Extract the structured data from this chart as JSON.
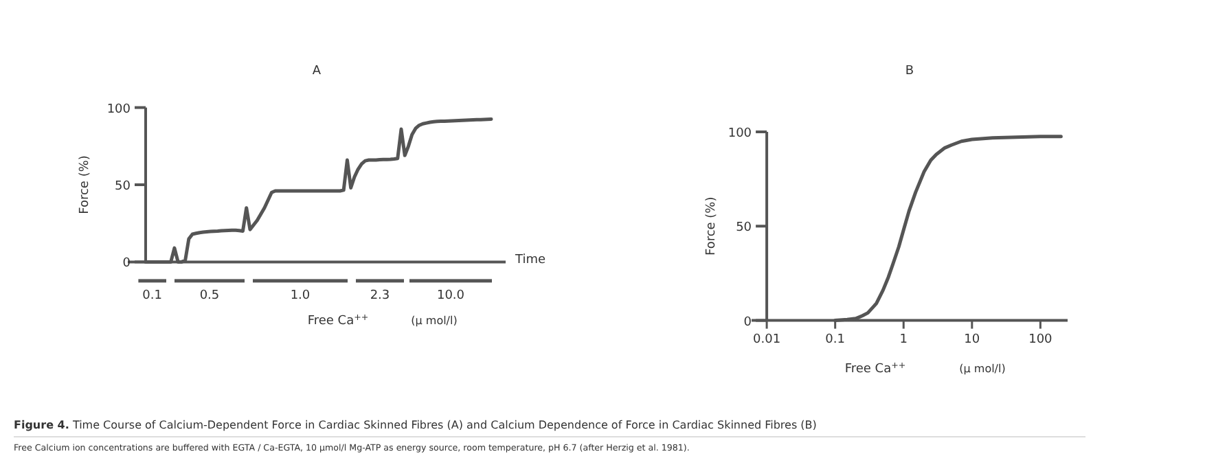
{
  "chart_data": [
    {
      "type": "line",
      "title": "A",
      "xlabel": "Time",
      "ylabel": "Force (%)",
      "categories": [
        null,
        null,
        null,
        null,
        null,
        null,
        null,
        null,
        null,
        null,
        null,
        null,
        null,
        null,
        null,
        null,
        null,
        null,
        null,
        null,
        null,
        null,
        null,
        null,
        null,
        null,
        null,
        null,
        null,
        null,
        null,
        null,
        null,
        null,
        null,
        null,
        null,
        null,
        null,
        null,
        null,
        null,
        null,
        null,
        null,
        null,
        null,
        null,
        null,
        null,
        null,
        null,
        null,
        null,
        null,
        null,
        null,
        null,
        null,
        null,
        null,
        null,
        null,
        null,
        null,
        null,
        null,
        null,
        null,
        null,
        null,
        null,
        null,
        null,
        null,
        null,
        null,
        null,
        null,
        null,
        null,
        null,
        null,
        null,
        null,
        null,
        null,
        null,
        null,
        null,
        null,
        null,
        null,
        null,
        null,
        null,
        null
      ],
      "ylim": [
        0,
        100
      ],
      "yticks": [
        0,
        50,
        100
      ],
      "tick_labels": "y",
      "marker": "none",
      "line_style": "solid",
      "series": [
        {
          "color": "#555555",
          "values": [
            0,
            0,
            0,
            0,
            0,
            0,
            0,
            0,
            9,
            0,
            0,
            1,
            15,
            18,
            18.5,
            19,
            19.3,
            19.5,
            19.7,
            19.9,
            20,
            20.2,
            20.3,
            20.4,
            20.5,
            20.5,
            20.3,
            20,
            35,
            21,
            24,
            27,
            31,
            35,
            40,
            45,
            46,
            46,
            46,
            46,
            46,
            46,
            46,
            46,
            46,
            46,
            46,
            46,
            46,
            46,
            46,
            46,
            46,
            46,
            46,
            46.5,
            66,
            48,
            55,
            60,
            63.5,
            65.5,
            66,
            66,
            66,
            66.2,
            66.3,
            66.4,
            66.5,
            66.7,
            67,
            86,
            69,
            75,
            82.5,
            86.5,
            88.5,
            89.5,
            90,
            90.5,
            90.8,
            91,
            91.1,
            91.2,
            91.3,
            91.4,
            91.5,
            91.6,
            91.7,
            91.8,
            91.9,
            92,
            92.1,
            92.2,
            92.3,
            92.4,
            92.5
          ]
        }
      ],
      "annotations": [
        "0.1",
        "0.5",
        "1.0",
        "2.3",
        "10.0",
        "Free Ca$^{++}$",
        "(μ mol/l)",
        "Figure 4.",
        "Time Course of Calcium-Dependent Force in Cardiac Skinned Fibres (A) and Calcium Dependence of Force in Cardiac Skinned Fibres (B)",
        "Free Calcium ion concentrations are buffered with EGTA / Ca-EGTA, 10 µmol/l Mg-ATP as energy source, room temperature, pH 6.7 (after Herzig et al. 1981)."
      ]
    },
    {
      "type": "line",
      "title": "B",
      "xlabel": "Free Ca$^{++}$",
      "ylabel": "Force (%)",
      "log": "x",
      "xlim": [
        0.006,
        250
      ],
      "xticks": [
        0.01,
        0.1,
        1,
        10,
        100
      ],
      "ylim": [
        0,
        100
      ],
      "yticks": [
        0,
        50,
        100
      ],
      "marker": "none",
      "line_style": "solid",
      "series": [
        {
          "color": "#555555",
          "x": [
            0.1,
            0.15,
            0.2,
            0.25,
            0.3,
            0.4,
            0.5,
            0.6,
            0.7,
            0.85,
            1,
            1.2,
            1.5,
            2,
            2.5,
            3,
            4,
            5,
            7,
            10,
            20,
            30,
            100,
            200
          ],
          "values": [
            0,
            0.5,
            1,
            2.5,
            4,
            9,
            16,
            23,
            30,
            39,
            48,
            58,
            68,
            79,
            85,
            88,
            91.5,
            93,
            95,
            96,
            96.8,
            97,
            97.5,
            97.5
          ]
        }
      ],
      "annotations": [
        "(μ mol/l)"
      ]
    }
  ]
}
